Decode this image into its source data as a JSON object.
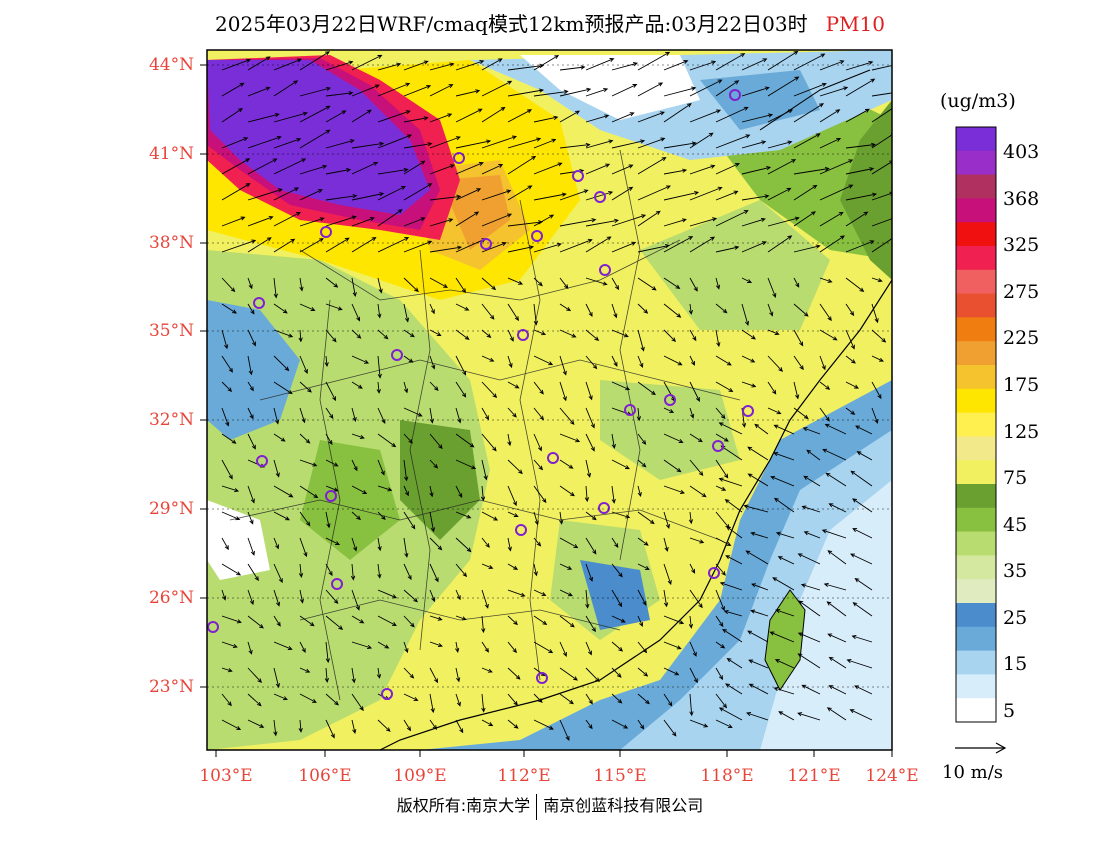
{
  "title": {
    "main": "2025年03月22日WRF/cmaq模式12km预报产品:03月22日03时",
    "variable": "PM10"
  },
  "colorbar": {
    "unit": "(ug/m3)",
    "labels": [
      "403",
      "368",
      "325",
      "275",
      "225",
      "175",
      "125",
      "75",
      "45",
      "35",
      "25",
      "15",
      "5"
    ],
    "colors": [
      "#7a2ed8",
      "#9a2ec8",
      "#b03060",
      "#c8107a",
      "#f01010",
      "#f02050",
      "#f06060",
      "#e85030",
      "#f07d10",
      "#f0a030",
      "#f5c32e",
      "#ffe600",
      "#fff050",
      "#f2ea8a",
      "#f0f060",
      "#6aa030",
      "#88c040",
      "#b8dc70",
      "#d4e8a0",
      "#e0ecc0",
      "#4a8ccc",
      "#6aaad8",
      "#a8d4f0",
      "#d8edfa",
      "#ffffff"
    ]
  },
  "vector_key": "10 m/s",
  "axes": {
    "lat_labels": [
      "44°N",
      "41°N",
      "38°N",
      "35°N",
      "32°N",
      "29°N",
      "26°N",
      "23°N"
    ],
    "lon_labels": [
      "103°E",
      "106°E",
      "109°E",
      "112°E",
      "115°E",
      "118°E",
      "121°E",
      "124°E"
    ]
  },
  "copyright": {
    "left": "版权所有:南京大学",
    "right": "南京创蓝科技有限公司"
  }
}
